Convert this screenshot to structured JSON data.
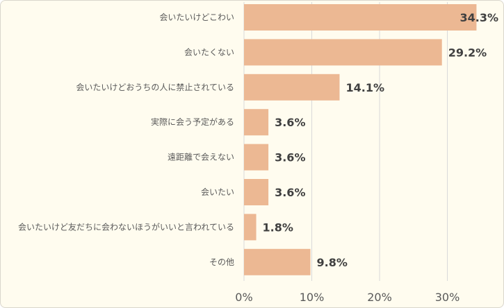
{
  "chart_data": {
    "type": "bar",
    "orientation": "horizontal",
    "categories": [
      "会いたいけどこわい",
      "会いたくない",
      "会いたいけどおうちの人に禁止されている",
      "実際に会う予定がある",
      "遠距離で会えない",
      "会いたい",
      "会いたいけど友だちに会わないほうがいいと言われている",
      "その他"
    ],
    "values": [
      34.3,
      29.2,
      14.1,
      3.6,
      3.6,
      3.6,
      1.8,
      9.8
    ],
    "value_labels": [
      "34.3%",
      "29.2%",
      "14.1%",
      "3.6%",
      "3.6%",
      "3.6%",
      "1.8%",
      "9.8%"
    ],
    "xlim": [
      0,
      37
    ],
    "xticks": [
      0,
      10,
      20,
      30
    ],
    "xtick_labels": [
      "0%",
      "10%",
      "20%",
      "30%"
    ],
    "grid": true,
    "legend": false,
    "bar_color": "#ecb893",
    "title": "",
    "xlabel": "",
    "ylabel": ""
  }
}
